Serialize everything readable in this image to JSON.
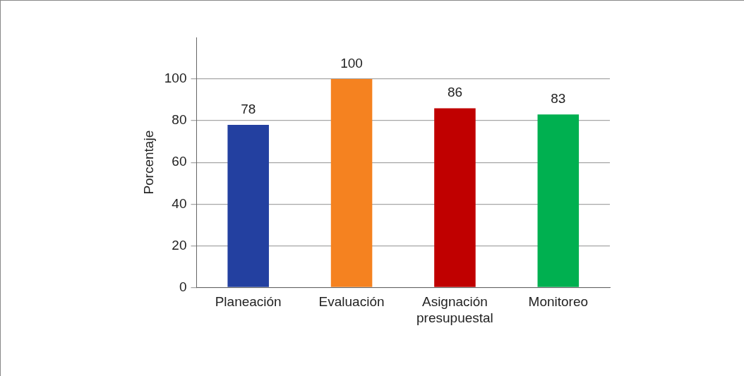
{
  "chart_data": {
    "type": "bar",
    "ylabel": "Porcentaje",
    "categories": [
      "Planeación",
      "Evaluación",
      "Asignación presupuestal",
      "Monitoreo"
    ],
    "values": [
      78,
      100,
      86,
      83
    ],
    "colors": [
      "#2340a0",
      "#f58220",
      "#c00000",
      "#00b050"
    ],
    "ylim": [
      0,
      120
    ],
    "yticks": [
      0,
      20,
      40,
      60,
      80,
      100
    ],
    "grid": "y",
    "legend": false,
    "data_labels": true
  }
}
